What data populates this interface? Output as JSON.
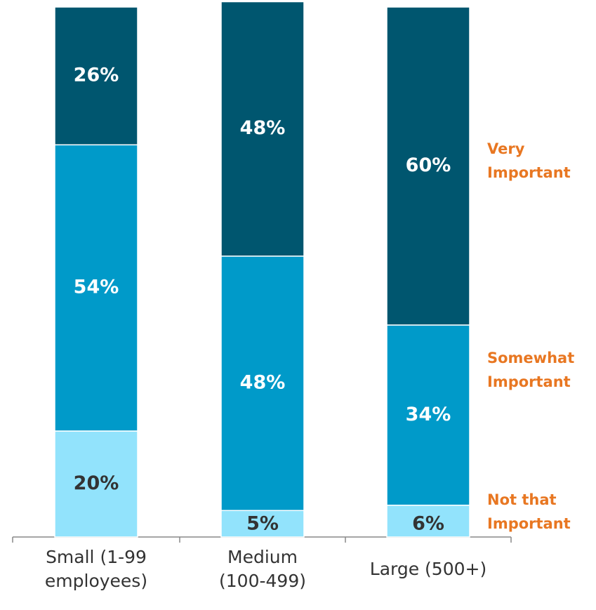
{
  "chart_data": {
    "type": "stacked_bar",
    "categories": [
      "Small (1-99 employees)",
      "Medium (100-499)",
      "Large (500+)"
    ],
    "ylim": [
      0,
      100
    ],
    "series": [
      {
        "name": "Not that Important",
        "color": "#92e3fc",
        "values": [
          20,
          5,
          6
        ],
        "value_labels": [
          "20%",
          "5%",
          "6%"
        ]
      },
      {
        "name": "Somewhat Important",
        "color": "#009ac9",
        "values": [
          54,
          48,
          34
        ],
        "value_labels": [
          "54%",
          "48%",
          "34%"
        ]
      },
      {
        "name": "Very Important",
        "color": "#00566f",
        "values": [
          26,
          48,
          60
        ],
        "value_labels": [
          "26%",
          "48%",
          "60%"
        ]
      }
    ]
  }
}
